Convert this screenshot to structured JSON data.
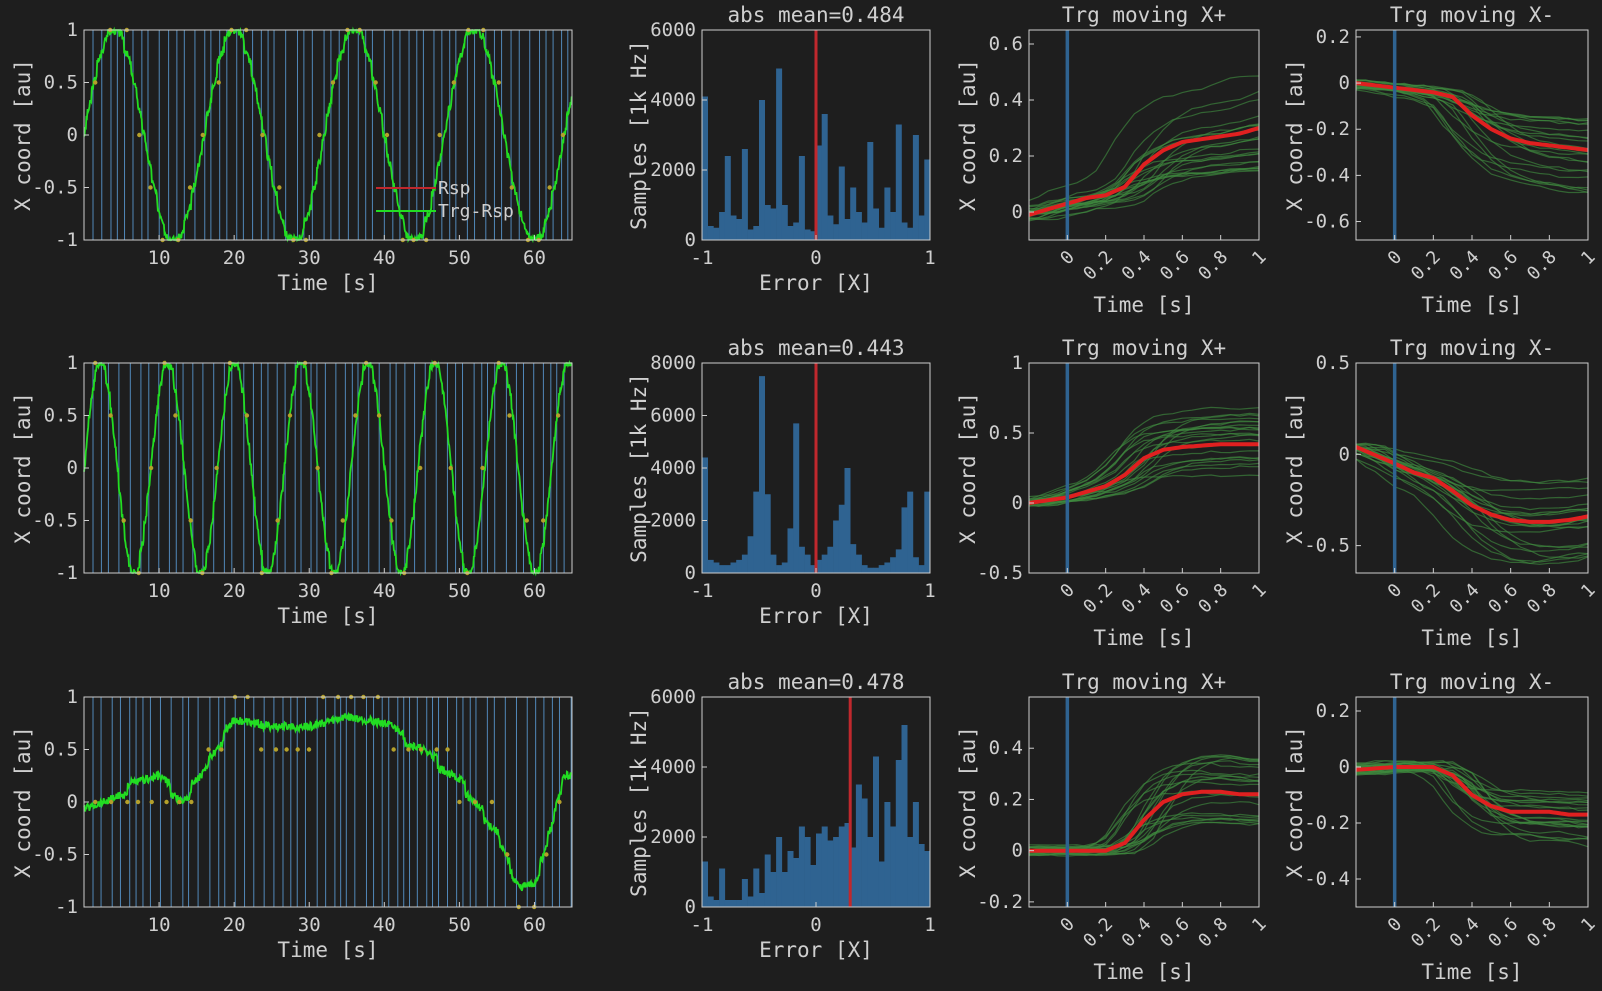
{
  "colors": {
    "background": "#1e1e1e",
    "axes_face": "#1e1e1e",
    "axis_line": "#cfcfcf",
    "text": "#cfcfcf",
    "trial_lines": "#5b9bd5",
    "response_trace": "#22dd22",
    "target_dots": "#b4a02a",
    "histogram": "#2f6391",
    "zero_line": "#c0282d",
    "onset_line": "#2f6391",
    "thin_traces": "#3f8a3f",
    "mean_trace": "#e02020"
  },
  "chart_data": [
    {
      "id": "r1-trace",
      "type": "line",
      "xlabel": "Time [s]",
      "ylabel": "X coord [au]",
      "xlim": [
        0,
        65
      ],
      "ylim": [
        -1,
        1
      ],
      "xticks": [
        "10",
        "20",
        "30",
        "40",
        "50",
        "60"
      ],
      "yticks": [
        "1",
        "0.5",
        "0",
        "-0.5",
        "-1"
      ],
      "legend": {
        "placement": "bottom-right",
        "items": [
          "Rsp",
          "Trg-Rsp"
        ]
      },
      "series": [
        {
          "name": "Trg-Rsp",
          "shape": "sine",
          "period_s": 16,
          "phase_s": 0,
          "amplitude": 1
        }
      ]
    },
    {
      "id": "r1-hist",
      "type": "bar",
      "title": "abs mean=0.484",
      "xlabel": "Error [X]",
      "ylabel": "Samples [1k Hz]",
      "xlim": [
        -1,
        1
      ],
      "ylim": [
        0,
        6000
      ],
      "xticks": [
        "-1",
        "0",
        "1"
      ],
      "yticks": [
        "6000",
        "4000",
        "2000",
        "0"
      ],
      "vline_x": 0,
      "values": [
        4100,
        400,
        350,
        800,
        2400,
        700,
        600,
        2600,
        300,
        400,
        4000,
        1000,
        900,
        4900,
        1000,
        400,
        500,
        2400,
        300,
        250,
        2700,
        3600,
        700,
        450,
        2100,
        600,
        1500,
        800,
        500,
        2800,
        900,
        350,
        1500,
        800,
        3300,
        500,
        350,
        3000,
        700,
        2300
      ]
    },
    {
      "id": "r1-plus",
      "type": "line",
      "title": "Trg moving X+",
      "xlabel": "Time [s]",
      "ylabel": "X coord [au]",
      "xlim": [
        -0.2,
        1.0
      ],
      "ylim": [
        -0.1,
        0.65
      ],
      "xticks": [
        "0",
        "0.2",
        "0.4",
        "0.6",
        "0.8",
        "1"
      ],
      "yticks": [
        "0.6",
        "0.4",
        "0.2",
        "0"
      ],
      "onset_x": 0,
      "mean": {
        "x": [
          -0.2,
          0,
          0.1,
          0.2,
          0.3,
          0.4,
          0.5,
          0.6,
          0.7,
          0.8,
          0.9,
          1.0
        ],
        "y": [
          -0.01,
          0.03,
          0.05,
          0.06,
          0.09,
          0.17,
          0.22,
          0.25,
          0.26,
          0.27,
          0.28,
          0.3
        ]
      }
    },
    {
      "id": "r1-minus",
      "type": "line",
      "title": "Trg moving X-",
      "xlabel": "Time [s]",
      "ylabel": "X coord [au]",
      "xlim": [
        -0.2,
        1.0
      ],
      "ylim": [
        -0.68,
        0.23
      ],
      "xticks": [
        "0",
        "0.2",
        "0.4",
        "0.6",
        "0.8",
        "1"
      ],
      "yticks": [
        "0.2",
        "0",
        "-0.2",
        "-0.4",
        "-0.6"
      ],
      "onset_x": 0,
      "mean": {
        "x": [
          -0.2,
          0,
          0.1,
          0.2,
          0.3,
          0.4,
          0.5,
          0.6,
          0.7,
          0.8,
          0.9,
          1.0
        ],
        "y": [
          0.0,
          -0.02,
          -0.03,
          -0.04,
          -0.06,
          -0.14,
          -0.2,
          -0.24,
          -0.26,
          -0.27,
          -0.28,
          -0.29
        ]
      }
    },
    {
      "id": "r2-trace",
      "type": "line",
      "xlabel": "Time [s]",
      "ylabel": "X coord [au]",
      "xlim": [
        0,
        65
      ],
      "ylim": [
        -1,
        1
      ],
      "xticks": [
        "10",
        "20",
        "30",
        "40",
        "50",
        "60"
      ],
      "yticks": [
        "1",
        "0.5",
        "0",
        "-0.5",
        "-1"
      ],
      "series": [
        {
          "name": "Trg-Rsp",
          "shape": "sine",
          "period_s": 8.9,
          "phase_s": 0,
          "amplitude": 1
        }
      ]
    },
    {
      "id": "r2-hist",
      "type": "bar",
      "title": "abs mean=0.443",
      "xlabel": "Error [X]",
      "ylabel": "Samples [1k Hz]",
      "xlim": [
        -1,
        1
      ],
      "ylim": [
        0,
        8000
      ],
      "xticks": [
        "-1",
        "0",
        "1"
      ],
      "yticks": [
        "8000",
        "6000",
        "4000",
        "2000",
        "0"
      ],
      "vline_x": 0,
      "values": [
        4400,
        500,
        400,
        300,
        300,
        400,
        500,
        700,
        1400,
        3100,
        7500,
        3000,
        700,
        300,
        400,
        1700,
        5700,
        1000,
        700,
        300,
        500,
        700,
        1000,
        2000,
        2600,
        4000,
        1100,
        700,
        300,
        200,
        200,
        300,
        400,
        600,
        900,
        2500,
        3100,
        600,
        300,
        3100
      ]
    },
    {
      "id": "r2-plus",
      "type": "line",
      "title": "Trg moving X+",
      "xlabel": "Time [s]",
      "ylabel": "X coord [au]",
      "xlim": [
        -0.2,
        1.0
      ],
      "ylim": [
        -0.5,
        1.0
      ],
      "xticks": [
        "0",
        "0.2",
        "0.4",
        "0.6",
        "0.8",
        "1"
      ],
      "yticks": [
        "1",
        "0.5",
        "0",
        "-0.5"
      ],
      "onset_x": 0,
      "mean": {
        "x": [
          -0.2,
          0,
          0.1,
          0.2,
          0.3,
          0.4,
          0.5,
          0.6,
          0.7,
          0.8,
          0.9,
          1.0
        ],
        "y": [
          0.0,
          0.04,
          0.08,
          0.12,
          0.2,
          0.32,
          0.38,
          0.4,
          0.41,
          0.42,
          0.42,
          0.42
        ]
      }
    },
    {
      "id": "r2-minus",
      "type": "line",
      "title": "Trg moving X-",
      "xlabel": "Time [s]",
      "ylabel": "X coord [au]",
      "xlim": [
        -0.2,
        1.0
      ],
      "ylim": [
        -0.65,
        0.5
      ],
      "xticks": [
        "0",
        "0.2",
        "0.4",
        "0.6",
        "0.8",
        "1"
      ],
      "yticks": [
        "0.5",
        "0",
        "-0.5"
      ],
      "onset_x": 0,
      "mean": {
        "x": [
          -0.2,
          0,
          0.1,
          0.2,
          0.3,
          0.4,
          0.5,
          0.6,
          0.7,
          0.8,
          0.9,
          1.0
        ],
        "y": [
          0.04,
          -0.05,
          -0.1,
          -0.13,
          -0.2,
          -0.28,
          -0.33,
          -0.36,
          -0.37,
          -0.37,
          -0.36,
          -0.34
        ]
      }
    },
    {
      "id": "r3-trace",
      "type": "line",
      "xlabel": "Time [s]",
      "ylabel": "X coord [au]",
      "xlim": [
        0,
        65
      ],
      "ylim": [
        -1,
        1
      ],
      "xticks": [
        "10",
        "20",
        "30",
        "40",
        "50",
        "60"
      ],
      "yticks": [
        "1",
        "0.5",
        "0",
        "-0.5",
        "-1"
      ],
      "series": [
        {
          "name": "Trg-Rsp",
          "shape": "drift",
          "x": [
            0,
            5,
            10,
            13,
            16,
            20,
            25,
            30,
            35,
            40,
            45,
            50,
            55,
            58,
            60,
            62,
            64
          ],
          "y": [
            -0.1,
            0.1,
            0.25,
            0.0,
            0.3,
            0.8,
            0.7,
            0.7,
            0.85,
            0.75,
            0.5,
            0.2,
            -0.3,
            -0.85,
            -0.8,
            -0.3,
            0.25
          ]
        }
      ]
    },
    {
      "id": "r3-hist",
      "type": "bar",
      "title": "abs mean=0.478",
      "xlabel": "Error [X]",
      "ylabel": "Samples [1k Hz]",
      "xlim": [
        -1,
        1
      ],
      "ylim": [
        0,
        6000
      ],
      "xticks": [
        "-1",
        "0",
        "1"
      ],
      "yticks": [
        "6000",
        "4000",
        "2000",
        "0"
      ],
      "vline_x": 0.3,
      "values": [
        1300,
        300,
        200,
        1100,
        200,
        200,
        200,
        800,
        300,
        1100,
        400,
        1500,
        1000,
        2000,
        1000,
        1600,
        1400,
        2300,
        2000,
        1200,
        2100,
        2300,
        1900,
        2000,
        2300,
        2400,
        1700,
        3500,
        3100,
        2000,
        4300,
        1300,
        3000,
        2300,
        4200,
        5200,
        2000,
        3000,
        1800,
        1600
      ]
    },
    {
      "id": "r3-plus",
      "type": "line",
      "title": "Trg moving X+",
      "xlabel": "Time [s]",
      "ylabel": "X coord [au]",
      "xlim": [
        -0.2,
        1.0
      ],
      "ylim": [
        -0.22,
        0.6
      ],
      "xticks": [
        "0",
        "0.2",
        "0.4",
        "0.6",
        "0.8",
        "1"
      ],
      "yticks": [
        "0.4",
        "0.2",
        "0",
        "-0.2"
      ],
      "onset_x": 0,
      "mean": {
        "x": [
          -0.2,
          0,
          0.1,
          0.2,
          0.3,
          0.4,
          0.5,
          0.6,
          0.7,
          0.8,
          0.9,
          1.0
        ],
        "y": [
          0.0,
          0.0,
          0.0,
          0.0,
          0.03,
          0.12,
          0.19,
          0.22,
          0.23,
          0.23,
          0.22,
          0.22
        ]
      }
    },
    {
      "id": "r3-minus",
      "type": "line",
      "title": "Trg moving X-",
      "xlabel": "Time [s]",
      "ylabel": "X coord [au]",
      "xlim": [
        -0.2,
        1.0
      ],
      "ylim": [
        -0.5,
        0.25
      ],
      "xticks": [
        "0",
        "0.2",
        "0.4",
        "0.6",
        "0.8",
        "1"
      ],
      "yticks": [
        "0.2",
        "0",
        "-0.2",
        "-0.4"
      ],
      "onset_x": 0,
      "mean": {
        "x": [
          -0.2,
          0,
          0.1,
          0.2,
          0.3,
          0.4,
          0.5,
          0.6,
          0.7,
          0.8,
          0.9,
          1.0
        ],
        "y": [
          -0.01,
          0.0,
          0.0,
          0.0,
          -0.03,
          -0.1,
          -0.14,
          -0.16,
          -0.16,
          -0.16,
          -0.17,
          -0.17
        ]
      }
    }
  ]
}
